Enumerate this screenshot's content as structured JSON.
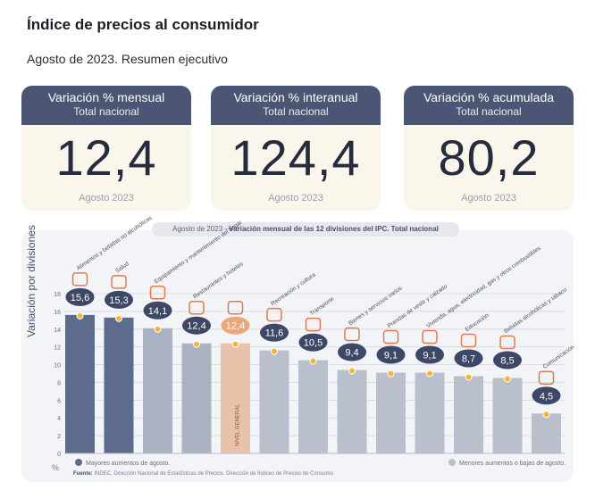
{
  "header": {
    "title": "Índice de precios al consumidor",
    "subtitle": "Agosto de 2023. Resumen ejecutivo"
  },
  "cards": [
    {
      "label": "Variación % mensual",
      "scope": "Total nacional",
      "value": "12,4",
      "date": "Agosto 2023"
    },
    {
      "label": "Variación % interanual",
      "scope": "Total nacional",
      "value": "124,4",
      "date": "Agosto 2023"
    },
    {
      "label": "Variación % acumulada",
      "scope": "Total nacional",
      "value": "80,2",
      "date": "Agosto 2023"
    }
  ],
  "chart_head": {
    "date": "Agosto de 2023",
    "sep": " - ",
    "title": "Variación mensual de las 12 divisiones del IPC. Total nacional"
  },
  "chart_data": {
    "type": "bar",
    "title": "Agosto de 2023 - Variación mensual de las 12 divisiones del IPC. Total nacional",
    "ylabel": "Variación por divisiones",
    "yunit": "%",
    "ylim": [
      0,
      18
    ],
    "yticks": [
      0,
      2,
      4,
      6,
      8,
      10,
      12,
      14,
      16,
      18
    ],
    "grid": true,
    "categories": [
      "Alimentos y bebidas no alcohólicas",
      "Salud",
      "Equipamiento y mantenimiento del hogar",
      "Restaurantes y hoteles",
      "NIVEL GENERAL",
      "Recreación y cultura",
      "Transporte",
      "Bienes y servicios varios",
      "Prendas de vestir y calzado",
      "Vivienda, agua, electricidad, gas y otros combustibles",
      "Educación",
      "Bebidas alcohólicas y tabaco",
      "Comunicación"
    ],
    "values": [
      15.6,
      15.3,
      14.1,
      12.4,
      12.4,
      11.6,
      10.5,
      9.4,
      9.1,
      9.1,
      8.7,
      8.5,
      4.5
    ],
    "value_labels": [
      "15,6",
      "15,3",
      "14,1",
      "12,4",
      "12,4",
      "11,6",
      "10,5",
      "9,4",
      "9,1",
      "9,1",
      "8,7",
      "8,5",
      "4,5"
    ],
    "groups": [
      "mayor",
      "mayor",
      "menor",
      "menor",
      "general",
      "menor",
      "menor",
      "menor",
      "menor",
      "menor",
      "menor",
      "menor",
      "menor"
    ],
    "inline_label": "NIVEL GENERAL",
    "legend": {
      "mayor": "Mayores aumentos de agosto.",
      "menor": "Menores aumentos o bajas de agosto."
    },
    "colors": {
      "mayor": "#5d6b8c",
      "menor": "#b9c0cc",
      "menor_alt": "#aab2c2",
      "general": "#e9c2ab",
      "badge": "#3d4766",
      "general_badge": "#e9a77e",
      "dot": "#f2b634",
      "icon": "#e07b4f"
    }
  },
  "legend": {
    "mayor": "Mayores aumentos de agosto.",
    "menor": "Menores aumentos o bajas de agosto.",
    "unit": "%"
  },
  "source": {
    "label": "Fuente:",
    "text": "INDEC, Dirección Nacional de Estadísticas de Precios. Dirección de Índices de Precios de Consumo"
  }
}
